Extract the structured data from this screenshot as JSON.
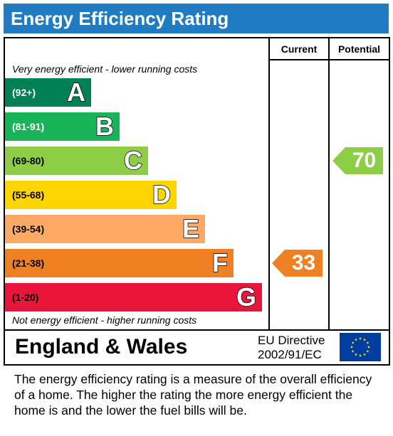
{
  "title": "Energy Efficiency Rating",
  "columns": {
    "current": "Current",
    "potential": "Potential"
  },
  "top_note": "Very energy efficient - lower running costs",
  "bottom_note": "Not energy efficient - higher running costs",
  "chart_data": {
    "type": "bar",
    "categories": [
      "A",
      "B",
      "C",
      "D",
      "E",
      "F",
      "G"
    ],
    "bands": [
      {
        "letter": "A",
        "range": "(92+)",
        "color": "#008054"
      },
      {
        "letter": "B",
        "range": "(81-91)",
        "color": "#19b459"
      },
      {
        "letter": "C",
        "range": "(69-80)",
        "color": "#8dce46"
      },
      {
        "letter": "D",
        "range": "(55-68)",
        "color": "#ffd500"
      },
      {
        "letter": "E",
        "range": "(39-54)",
        "color": "#fcaa65"
      },
      {
        "letter": "F",
        "range": "(21-38)",
        "color": "#ef8023"
      },
      {
        "letter": "G",
        "range": "(1-20)",
        "color": "#e9153b"
      }
    ],
    "current": {
      "value": "33",
      "band": "F",
      "color": "#ef8023"
    },
    "potential": {
      "value": "70",
      "band": "C",
      "color": "#8dce46"
    }
  },
  "footer": {
    "country": "England & Wales",
    "directive_line1": "EU Directive",
    "directive_line2": "2002/91/EC",
    "flag": "eu-flag-icon"
  },
  "description": "The energy efficiency rating is a measure of the overall efficiency of a home.  The higher the rating the more energy efficient the home is and the lower the fuel bills will be."
}
